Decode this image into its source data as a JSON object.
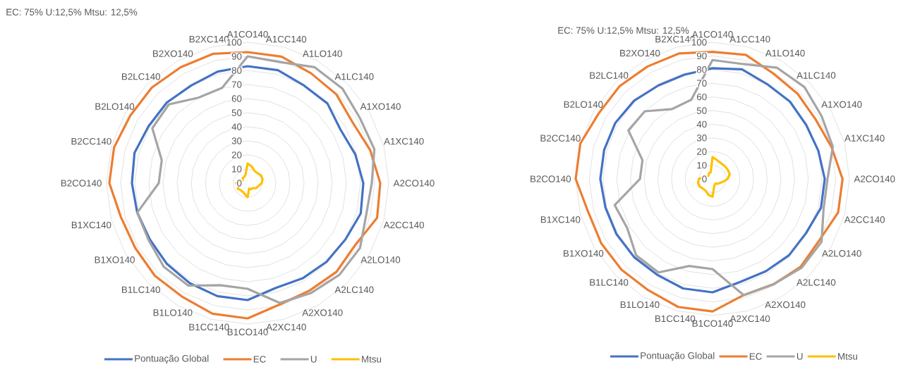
{
  "chart_data": [
    {
      "type": "radar",
      "title": "EC: 75%  U:12,5%   Mtsu: 12,5%",
      "categories": [
        "A1CO140",
        "A1CC140",
        "A1LO140",
        "A1LC140",
        "A1XO140",
        "A1XC140",
        "A2CO140",
        "A2CC140",
        "A2LO140",
        "A2LC140",
        "A2XO140",
        "A2XC140",
        "B1CO140",
        "B1CC140",
        "B1LO140",
        "B1LC140",
        "B1XO140",
        "B1XC140",
        "B2CO140",
        "B2CC140",
        "B2LO140",
        "B2LC140",
        "B2XO140",
        "B2XC140"
      ],
      "series": [
        {
          "name": "Pontuação Global",
          "color": "#4472c4",
          "values": [
            83,
            83,
            80,
            80,
            76,
            79,
            82,
            83,
            80,
            79,
            78,
            77,
            83,
            83,
            82,
            81,
            80,
            81,
            82,
            83,
            81,
            81,
            80,
            82
          ]
        },
        {
          "name": "EC",
          "color": "#ed7d31",
          "values": [
            93,
            93,
            90,
            89,
            86,
            90,
            94,
            95,
            88,
            89,
            88,
            89,
            96,
            96,
            93,
            93,
            92,
            93,
            98,
            98,
            96,
            96,
            95,
            95
          ]
        },
        {
          "name": "U",
          "color": "#a5a5a5",
          "values": [
            90,
            89,
            95,
            95,
            92,
            93,
            88,
            87,
            92,
            92,
            90,
            88,
            75,
            75,
            84,
            84,
            81,
            81,
            63,
            63,
            78,
            79,
            70,
            70
          ]
        },
        {
          "name": "Mtsu",
          "color": "#ffc000",
          "values": [
            14,
            12,
            10,
            10,
            11,
            11,
            10,
            8,
            7,
            5,
            5,
            4,
            10,
            8,
            7,
            7,
            8,
            7,
            8,
            6,
            4,
            5,
            5,
            6
          ]
        }
      ],
      "ylim": [
        0,
        100
      ],
      "yticks": [
        0,
        10,
        20,
        30,
        40,
        50,
        60,
        70,
        80,
        90,
        100
      ],
      "grid": true,
      "legend": "bottom"
    },
    {
      "type": "radar",
      "title": "EC: 75%  U:12,5%   Mtsu: 12,5%",
      "categories": [
        "A1CO140",
        "A1CC140",
        "A1LO140",
        "A1LC140",
        "A1XO140",
        "A1XC140",
        "A2CO140",
        "A2CC140",
        "A2LO140",
        "A2LC140",
        "A2XO140",
        "A2XC140",
        "B1CO140",
        "B1CC140",
        "B1LO140",
        "B1LC140",
        "B1XO140",
        "B1XC140",
        "B2CO140",
        "B2CC140",
        "B2LO140",
        "B2LC140",
        "B2XO140",
        "B2XC140"
      ],
      "series": [
        {
          "name": "Pontuação Global",
          "color": "#4472c4",
          "values": [
            81,
            83,
            80,
            80,
            79,
            80,
            82,
            82,
            79,
            79,
            78,
            78,
            83,
            83,
            81,
            81,
            81,
            81,
            82,
            82,
            82,
            81,
            79,
            79
          ]
        },
        {
          "name": "EC",
          "color": "#ed7d31",
          "values": [
            93,
            94,
            89,
            88,
            87,
            90,
            95,
            95,
            90,
            91,
            89,
            88,
            97,
            97,
            94,
            94,
            94,
            94,
            100,
            100,
            96,
            96,
            95,
            95
          ]
        },
        {
          "name": "U",
          "color": "#a5a5a5",
          "values": [
            87,
            87,
            94,
            95,
            92,
            91,
            84,
            84,
            92,
            92,
            89,
            88,
            66,
            66,
            79,
            79,
            72,
            74,
            53,
            53,
            71,
            70,
            59,
            60
          ]
        },
        {
          "name": "Mtsu",
          "color": "#ffc000",
          "values": [
            16,
            14,
            13,
            13,
            13,
            13,
            11,
            8,
            6,
            5,
            4,
            5,
            13,
            12,
            10,
            10,
            11,
            11,
            10,
            6,
            4,
            4,
            5,
            5
          ]
        }
      ],
      "ylim": [
        0,
        100
      ],
      "yticks": [
        0,
        10,
        20,
        30,
        40,
        50,
        60,
        70,
        80,
        90,
        100
      ],
      "grid": true,
      "legend": "bottom"
    }
  ]
}
